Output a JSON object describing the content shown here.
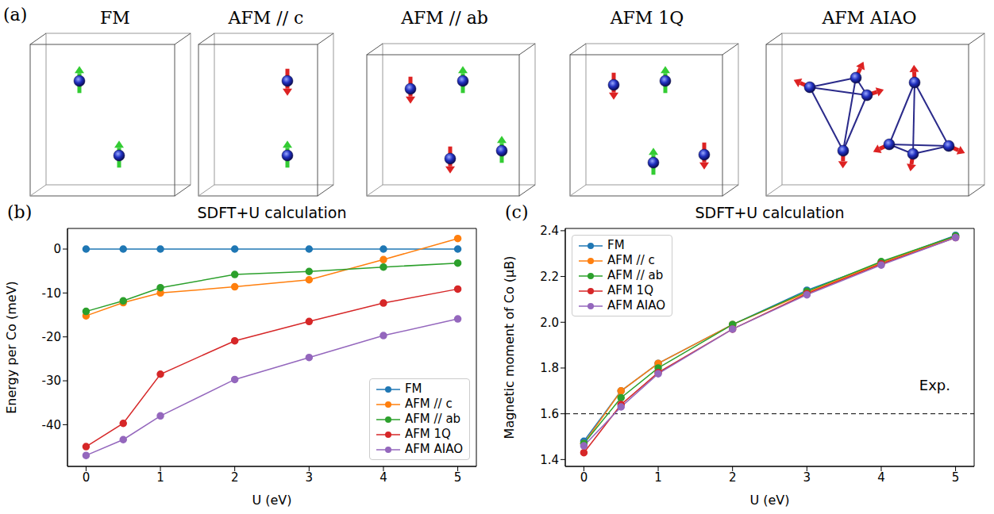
{
  "diagram": {
    "label": "(a)",
    "panels": [
      "FM",
      "AFM // c",
      "AFM // ab",
      "AFM 1Q",
      "AFM AIAO"
    ]
  },
  "chart_data": [
    {
      "type": "line",
      "label": "(b)",
      "title": "SDFT+U calculation",
      "x_label": "U (eV)",
      "y_label": "Energy per Co (meV)",
      "x": [
        0,
        0.5,
        1,
        2,
        3,
        4,
        5
      ],
      "xlim": [
        -0.25,
        5.25
      ],
      "xticks": [
        0,
        1,
        2,
        3,
        4,
        5
      ],
      "ylim": [
        -49.5,
        4.7
      ],
      "yticks": [
        -40,
        -30,
        -20,
        -10,
        0
      ],
      "legend": "lower right",
      "series": [
        {
          "name": "FM",
          "color": "#1f77b4",
          "marker": "circle",
          "values": [
            0,
            0,
            0,
            0,
            0,
            0,
            0
          ]
        },
        {
          "name": "AFM // c",
          "color": "#ff7f0e",
          "marker": "circle",
          "values": [
            -15.2,
            -12.2,
            -10,
            -8.6,
            -7,
            -2.4,
            2.4
          ]
        },
        {
          "name": "AFM // ab",
          "color": "#2ca02c",
          "marker": "circle",
          "values": [
            -14.2,
            -11.8,
            -8.8,
            -5.8,
            -5.1,
            -4.1,
            -3.2
          ]
        },
        {
          "name": "AFM 1Q",
          "color": "#d62728",
          "marker": "circle",
          "values": [
            -45,
            -39.7,
            -28.5,
            -20.9,
            -16.5,
            -12.3,
            -9.1
          ]
        },
        {
          "name": "AFM AIAO",
          "color": "#9467bd",
          "marker": "circle",
          "values": [
            -47,
            -43.4,
            -38,
            -29.7,
            -24.7,
            -19.7,
            -15.9
          ]
        }
      ]
    },
    {
      "type": "line",
      "label": "(c)",
      "title": "SDFT+U calculation",
      "x_label": "U (eV)",
      "y_label": "Magnetic moment of Co (μB)",
      "x": [
        0,
        0.5,
        1,
        2,
        3,
        4,
        5
      ],
      "xlim": [
        -0.25,
        5.25
      ],
      "xticks": [
        0,
        1,
        2,
        3,
        4,
        5
      ],
      "ylim": [
        1.37,
        2.41
      ],
      "yticks": [
        1.4,
        1.6,
        1.8,
        {
          "value": 2,
          "label": "2.0"
        },
        2.2,
        2.4
      ],
      "legend": "upper left",
      "reference_line": {
        "value": 1.6,
        "label": "Exp.",
        "line_style": "dashed"
      },
      "series": [
        {
          "name": "FM",
          "color": "#1f77b4",
          "marker": "circle",
          "values": [
            1.48,
            1.7,
            1.82,
            1.99,
            2.14,
            2.26,
            2.38
          ]
        },
        {
          "name": "AFM // c",
          "color": "#ff7f0e",
          "marker": "circle",
          "values": [
            1.47,
            1.7,
            1.82,
            1.99,
            2.13,
            2.26,
            2.375
          ]
        },
        {
          "name": "AFM // ab",
          "color": "#2ca02c",
          "marker": "circle",
          "values": [
            1.47,
            1.67,
            1.8,
            1.99,
            2.135,
            2.265,
            2.377
          ]
        },
        {
          "name": "AFM 1Q",
          "color": "#d62728",
          "marker": "circle",
          "values": [
            1.43,
            1.64,
            1.78,
            1.97,
            2.125,
            2.255,
            2.37
          ]
        },
        {
          "name": "AFM AIAO",
          "color": "#9467bd",
          "marker": "circle",
          "values": [
            1.46,
            1.63,
            1.775,
            1.97,
            2.12,
            2.25,
            2.37
          ]
        }
      ]
    }
  ]
}
